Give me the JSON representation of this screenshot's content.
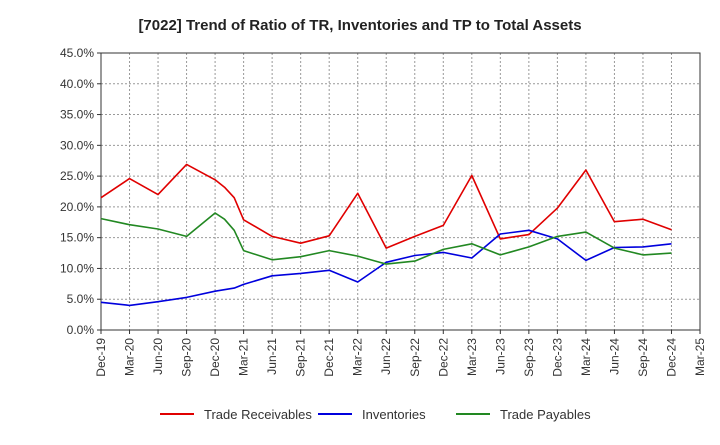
{
  "chart_data": {
    "type": "line",
    "title": "[7022]  Trend of Ratio of TR, Inventories and TP to Total Assets",
    "xlabel": "",
    "ylabel": "",
    "ylim": [
      0,
      45
    ],
    "y_ticks": [
      0,
      5,
      10,
      15,
      20,
      25,
      30,
      35,
      40,
      45
    ],
    "y_tick_labels": [
      "0.0%",
      "5.0%",
      "10.0%",
      "15.0%",
      "20.0%",
      "25.0%",
      "30.0%",
      "35.0%",
      "40.0%",
      "45.0%"
    ],
    "x_tick_labels": [
      "Dec-19",
      "Mar-20",
      "Jun-20",
      "Sep-20",
      "Dec-20",
      "Mar-21",
      "Jun-21",
      "Sep-21",
      "Dec-21",
      "Mar-22",
      "Jun-22",
      "Sep-22",
      "Dec-22",
      "Mar-23",
      "Jun-23",
      "Sep-23",
      "Dec-23",
      "Mar-24",
      "Jun-24",
      "Sep-24",
      "Dec-24",
      "Mar-25"
    ],
    "grid": true,
    "legend_position": "bottom",
    "series": [
      {
        "name": "Trade Receivables",
        "color": "#e00000",
        "points": [
          [
            0,
            21.5
          ],
          [
            1,
            24.6
          ],
          [
            2,
            22.0
          ],
          [
            3,
            26.9
          ],
          [
            4,
            24.4
          ],
          [
            4.33,
            23.2
          ],
          [
            4.67,
            21.5
          ],
          [
            5,
            17.9
          ],
          [
            6,
            15.2
          ],
          [
            7,
            14.1
          ],
          [
            8,
            15.3
          ],
          [
            9,
            22.2
          ],
          [
            10,
            13.3
          ],
          [
            11,
            15.2
          ],
          [
            12,
            17.0
          ],
          [
            13,
            25.1
          ],
          [
            14,
            14.8
          ],
          [
            15,
            15.5
          ],
          [
            16,
            19.8
          ],
          [
            17,
            26.0
          ],
          [
            18,
            17.6
          ],
          [
            19,
            18.0
          ],
          [
            20,
            16.3
          ]
        ]
      },
      {
        "name": "Inventories",
        "color": "#0000dd",
        "points": [
          [
            0,
            4.5
          ],
          [
            1,
            4.0
          ],
          [
            2,
            4.6
          ],
          [
            3,
            5.3
          ],
          [
            4,
            6.3
          ],
          [
            4.67,
            6.8
          ],
          [
            5,
            7.4
          ],
          [
            6,
            8.8
          ],
          [
            7,
            9.2
          ],
          [
            8,
            9.7
          ],
          [
            9,
            7.8
          ],
          [
            10,
            11.0
          ],
          [
            11,
            12.1
          ],
          [
            12,
            12.6
          ],
          [
            13,
            11.7
          ],
          [
            14,
            15.6
          ],
          [
            15,
            16.2
          ],
          [
            16,
            14.8
          ],
          [
            17,
            11.3
          ],
          [
            18,
            13.4
          ],
          [
            19,
            13.5
          ],
          [
            20,
            14.0
          ]
        ]
      },
      {
        "name": "Trade Payables",
        "color": "#228822",
        "points": [
          [
            0,
            18.1
          ],
          [
            1,
            17.1
          ],
          [
            2,
            16.4
          ],
          [
            3,
            15.2
          ],
          [
            4,
            19.0
          ],
          [
            4.33,
            18.0
          ],
          [
            4.67,
            16.2
          ],
          [
            5,
            12.9
          ],
          [
            6,
            11.4
          ],
          [
            7,
            11.9
          ],
          [
            8,
            12.9
          ],
          [
            9,
            12.0
          ],
          [
            10,
            10.7
          ],
          [
            11,
            11.2
          ],
          [
            12,
            13.1
          ],
          [
            13,
            14.0
          ],
          [
            14,
            12.2
          ],
          [
            15,
            13.5
          ],
          [
            16,
            15.2
          ],
          [
            17,
            15.9
          ],
          [
            18,
            13.3
          ],
          [
            19,
            12.2
          ],
          [
            20,
            12.5
          ]
        ]
      }
    ]
  }
}
